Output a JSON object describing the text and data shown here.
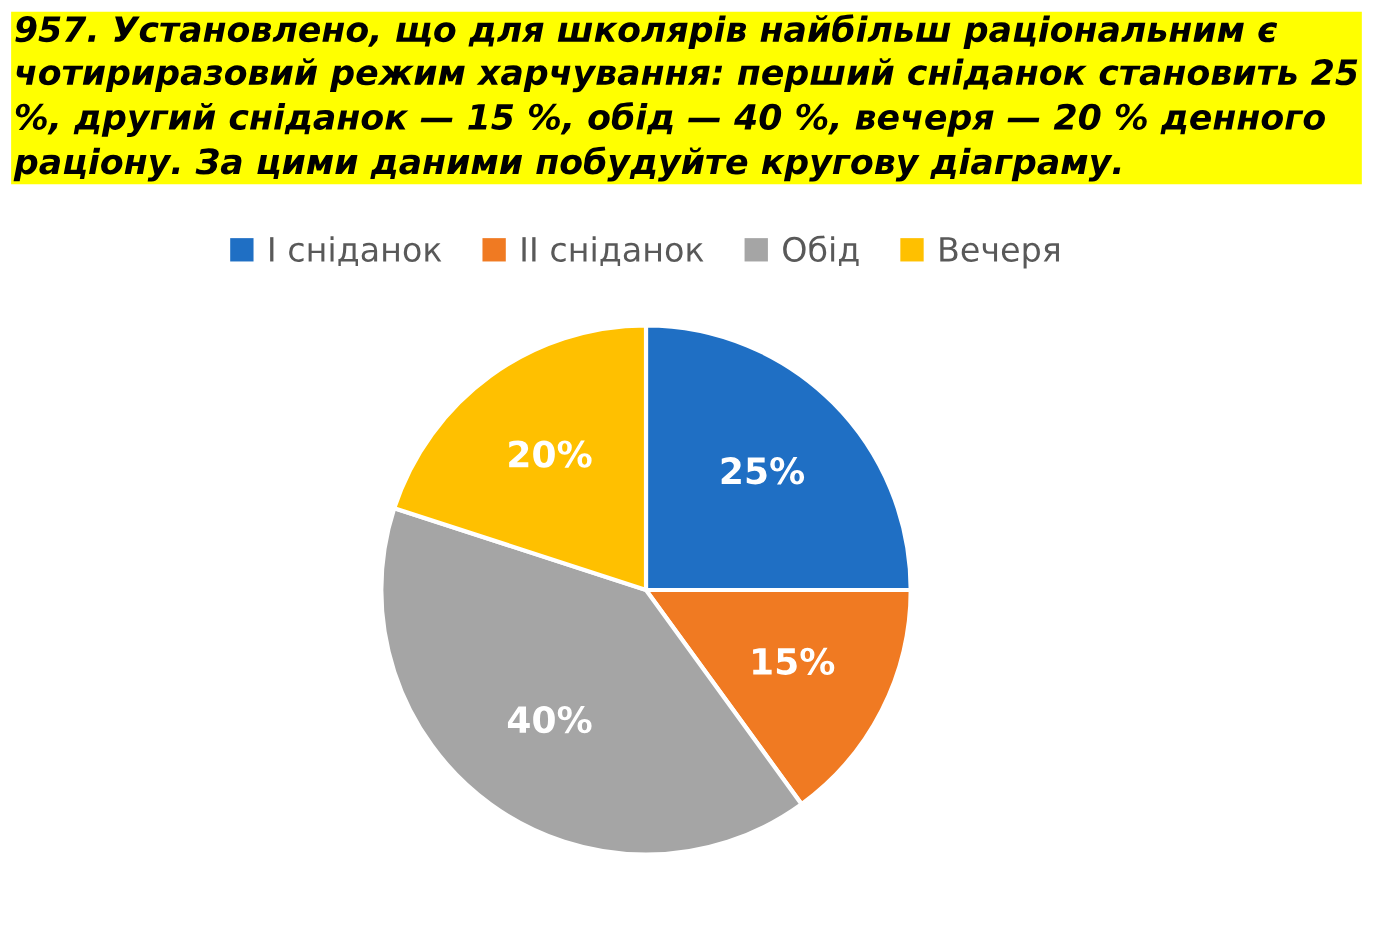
{
  "chart_data": {
    "type": "pie",
    "title": "957. Установлено, що для школярів найбільш раціональним є чотириразовий режим харчування: перший сніданок становить 25 %, другий сніданок — 15 %, обід — 40 %, вечеря — 20 % денного раціону. За цими даними побудуйте кругову діаграму.",
    "categories": [
      "I сніданок",
      "II сніданок",
      "Обід",
      "Вечеря"
    ],
    "values": [
      25,
      15,
      40,
      20
    ],
    "colors": [
      "#1f6fc4",
      "#f07a22",
      "#a5a5a5",
      "#ffc000"
    ],
    "value_labels": [
      "25%",
      "15%",
      "40%",
      "20%"
    ],
    "legend": "top"
  }
}
